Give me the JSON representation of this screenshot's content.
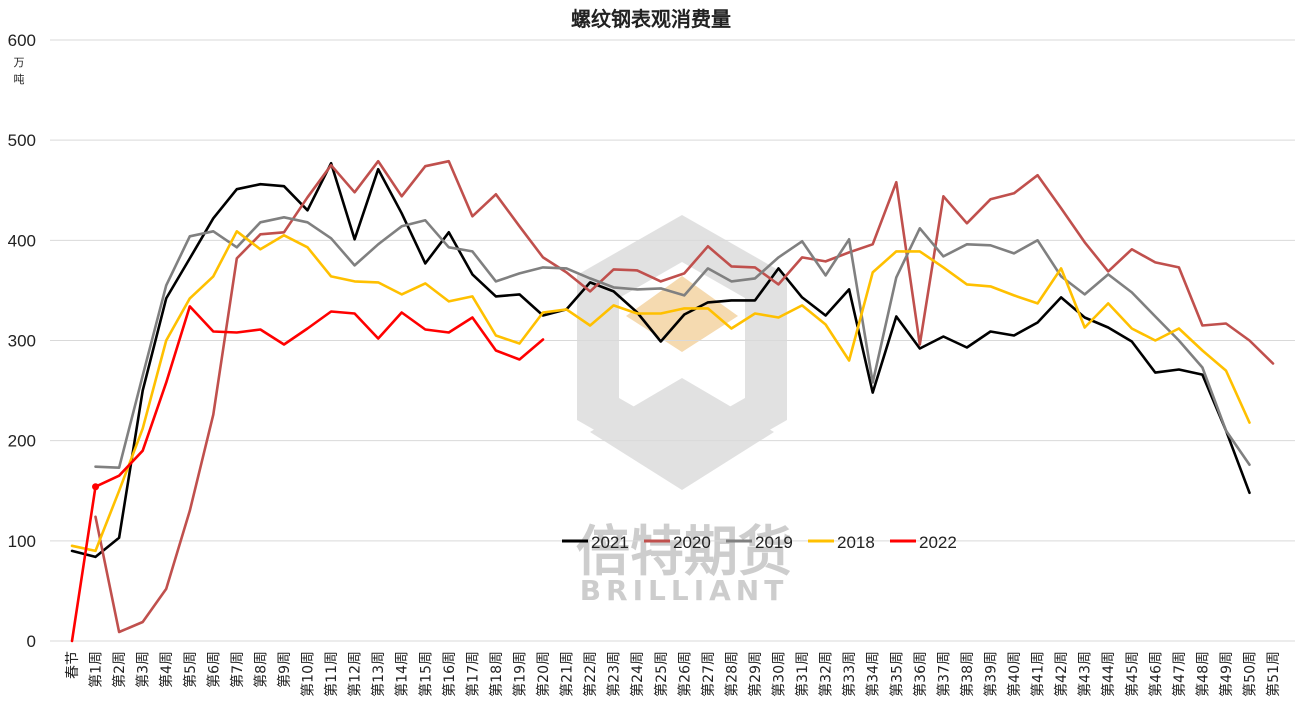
{
  "chart_data": {
    "type": "line",
    "title": "螺纹钢表观消费量",
    "unit_label": [
      "万",
      "吨"
    ],
    "ylim": [
      0,
      600
    ],
    "yticks": [
      0,
      100,
      200,
      300,
      400,
      500,
      600
    ],
    "grid": "horizontal",
    "legend_position": "bottom-center",
    "categories": [
      "春节",
      "第1周",
      "第2周",
      "第3周",
      "第4周",
      "第5周",
      "第6周",
      "第7周",
      "第8周",
      "第9周",
      "第10周",
      "第11周",
      "第12周",
      "第13周",
      "第14周",
      "第15周",
      "第16周",
      "第17周",
      "第18周",
      "第19周",
      "第20周",
      "第21周",
      "第22周",
      "第23周",
      "第24周",
      "第25周",
      "第26周",
      "第27周",
      "第28周",
      "第29周",
      "第30周",
      "第31周",
      "第32周",
      "第33周",
      "第34周",
      "第35周",
      "第36周",
      "第37周",
      "第38周",
      "第39周",
      "第40周",
      "第41周",
      "第42周",
      "第43周",
      "第44周",
      "第45周",
      "第46周",
      "第47周",
      "第48周",
      "第49周",
      "第50周",
      "第51周"
    ],
    "series": [
      {
        "name": "2021",
        "color": "#000000",
        "values": [
          90,
          84,
          103,
          250,
          342,
          382,
          422,
          451,
          456,
          454,
          430,
          477,
          401,
          471,
          427,
          377,
          408,
          366,
          344,
          346,
          325,
          331,
          358,
          349,
          328,
          299,
          326,
          338,
          340,
          340,
          372,
          343,
          325,
          351,
          248,
          324,
          292,
          304,
          293,
          309,
          305,
          318,
          343,
          323,
          313,
          299,
          268,
          271,
          266,
          210,
          148,
          null
        ]
      },
      {
        "name": "2020",
        "color": "#c0504d",
        "values": [
          null,
          124,
          9,
          19,
          52,
          130,
          226,
          382,
          406,
          408,
          443,
          475,
          448,
          479,
          444,
          474,
          479,
          424,
          446,
          414,
          383,
          368,
          349,
          371,
          370,
          359,
          367,
          394,
          374,
          373,
          356,
          383,
          379,
          388,
          396,
          458,
          296,
          444,
          417,
          441,
          447,
          465,
          432,
          398,
          369,
          391,
          378,
          373,
          315,
          317,
          300,
          277
        ]
      },
      {
        "name": "2019",
        "color": "#808080",
        "values": [
          null,
          174,
          173,
          265,
          355,
          404,
          409,
          393,
          418,
          423,
          418,
          402,
          375,
          396,
          414,
          420,
          393,
          389,
          359,
          367,
          373,
          372,
          362,
          353,
          351,
          352,
          345,
          372,
          359,
          362,
          383,
          399,
          365,
          401,
          258,
          363,
          412,
          384,
          396,
          395,
          387,
          400,
          364,
          346,
          366,
          348,
          324,
          300,
          273,
          210,
          176,
          null
        ]
      },
      {
        "name": "2018",
        "color": "#ffc000",
        "values": [
          95,
          90,
          150,
          212,
          300,
          342,
          364,
          409,
          391,
          405,
          393,
          364,
          359,
          358,
          346,
          357,
          339,
          344,
          305,
          297,
          328,
          331,
          315,
          335,
          327,
          327,
          332,
          332,
          312,
          327,
          323,
          335,
          316,
          280,
          368,
          389,
          389,
          373,
          356,
          354,
          345,
          337,
          372,
          313,
          337,
          312,
          300,
          312,
          290,
          270,
          218,
          null
        ]
      },
      {
        "name": "2022",
        "color": "#ff0000",
        "values": [
          0,
          154,
          165,
          190,
          258,
          334,
          309,
          308,
          311,
          296,
          312,
          329,
          327,
          302,
          328,
          311,
          308,
          323,
          290,
          281,
          301,
          null,
          null,
          null,
          null,
          null,
          null,
          null,
          null,
          null,
          null,
          null,
          null,
          null,
          null,
          null,
          null,
          null,
          null,
          null,
          null,
          null,
          null,
          null,
          null,
          null,
          null,
          null,
          null,
          null,
          null,
          null
        ]
      }
    ],
    "watermark": {
      "cn": "倍特期货",
      "en": "BRILLIANT"
    }
  }
}
